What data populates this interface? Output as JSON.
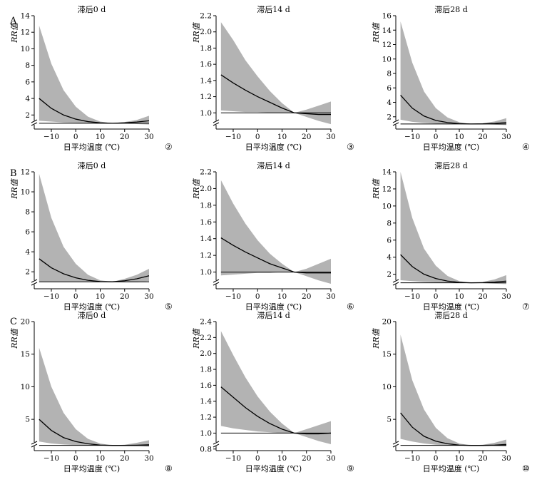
{
  "row_labels": [
    "A",
    "B",
    "C"
  ],
  "chart_data": [
    {
      "type": "line",
      "row": 0,
      "col": 0,
      "number": "②",
      "title": "滞后0 d",
      "xlabel": "日平均温度 (℃)",
      "ylabel": "RR值",
      "xlim": [
        -17,
        30
      ],
      "ylim": [
        0.3,
        14
      ],
      "xticks": [
        -10,
        0,
        10,
        20,
        30
      ],
      "yticks": [
        2,
        4,
        6,
        8,
        10,
        12,
        14
      ],
      "axis_break": true,
      "x": [
        -15,
        -10,
        -5,
        0,
        5,
        10,
        15,
        20,
        25,
        30
      ],
      "series": [
        {
          "role": "estimate",
          "values": [
            4.0,
            2.8,
            2.0,
            1.5,
            1.2,
            1.05,
            1.0,
            1.05,
            1.15,
            1.3
          ]
        },
        {
          "role": "ci_upper",
          "values": [
            12.8,
            8.2,
            5.0,
            3.0,
            1.8,
            1.2,
            1.0,
            1.15,
            1.4,
            1.9
          ]
        },
        {
          "role": "ci_lower",
          "values": [
            1.3,
            1.2,
            1.1,
            1.05,
            1.0,
            0.98,
            1.0,
            0.97,
            0.9,
            0.85
          ]
        },
        {
          "role": "reference",
          "values": [
            1,
            1,
            1,
            1,
            1,
            1,
            1,
            1,
            1,
            1
          ]
        }
      ]
    },
    {
      "type": "line",
      "row": 0,
      "col": 1,
      "number": "③",
      "title": "滞后14 d",
      "xlabel": "日平均温度 (℃)",
      "ylabel": "RR值",
      "xlim": [
        -17,
        30
      ],
      "ylim": [
        0.8,
        2.2
      ],
      "xticks": [
        -10,
        0,
        10,
        20,
        30
      ],
      "yticks": [
        1.0,
        1.2,
        1.4,
        1.6,
        1.8,
        2.0,
        2.2
      ],
      "axis_break": true,
      "x": [
        -15,
        -10,
        -5,
        0,
        5,
        10,
        15,
        20,
        25,
        30
      ],
      "series": [
        {
          "role": "estimate",
          "values": [
            1.47,
            1.37,
            1.28,
            1.2,
            1.13,
            1.06,
            1.0,
            0.99,
            0.98,
            0.98
          ]
        },
        {
          "role": "ci_upper",
          "values": [
            2.12,
            1.9,
            1.65,
            1.45,
            1.27,
            1.12,
            1.0,
            1.04,
            1.09,
            1.14
          ]
        },
        {
          "role": "ci_lower",
          "values": [
            1.03,
            1.02,
            1.01,
            1.01,
            1.0,
            1.0,
            1.0,
            0.95,
            0.9,
            0.86
          ]
        },
        {
          "role": "reference",
          "values": [
            1,
            1,
            1,
            1,
            1,
            1,
            1,
            1,
            1,
            1
          ]
        }
      ]
    },
    {
      "type": "line",
      "row": 0,
      "col": 2,
      "number": "④",
      "title": "滞后28 d",
      "xlabel": "日平均温度 (℃)",
      "ylabel": "RR值",
      "xlim": [
        -17,
        30
      ],
      "ylim": [
        0.3,
        16
      ],
      "xticks": [
        -10,
        0,
        10,
        20,
        30
      ],
      "yticks": [
        2,
        4,
        6,
        8,
        10,
        12,
        14,
        16
      ],
      "axis_break": true,
      "x": [
        -15,
        -10,
        -5,
        0,
        5,
        10,
        15,
        20,
        25,
        30
      ],
      "series": [
        {
          "role": "estimate",
          "values": [
            5.0,
            3.2,
            2.1,
            1.5,
            1.2,
            1.05,
            1.0,
            1.02,
            1.08,
            1.2
          ]
        },
        {
          "role": "ci_upper",
          "values": [
            15.2,
            9.5,
            5.5,
            3.2,
            1.9,
            1.25,
            1.0,
            1.1,
            1.35,
            1.8
          ]
        },
        {
          "role": "ci_lower",
          "values": [
            1.6,
            1.3,
            1.15,
            1.05,
            1.0,
            0.98,
            1.0,
            0.97,
            0.9,
            0.85
          ]
        },
        {
          "role": "reference",
          "values": [
            1,
            1,
            1,
            1,
            1,
            1,
            1,
            1,
            1,
            1
          ]
        }
      ]
    },
    {
      "type": "line",
      "row": 1,
      "col": 0,
      "number": "⑤",
      "title": "滞后0 d",
      "xlabel": "日平均温度 (℃)",
      "ylabel": "RR值",
      "xlim": [
        -17,
        30
      ],
      "ylim": [
        0.3,
        12
      ],
      "xticks": [
        -10,
        0,
        10,
        20,
        30
      ],
      "yticks": [
        2,
        4,
        6,
        8,
        10,
        12
      ],
      "axis_break": true,
      "x": [
        -15,
        -10,
        -5,
        0,
        5,
        10,
        15,
        20,
        25,
        30
      ],
      "series": [
        {
          "role": "estimate",
          "values": [
            3.3,
            2.4,
            1.8,
            1.4,
            1.15,
            1.02,
            1.0,
            1.1,
            1.3,
            1.6
          ]
        },
        {
          "role": "ci_upper",
          "values": [
            11.8,
            7.4,
            4.5,
            2.8,
            1.7,
            1.15,
            1.0,
            1.3,
            1.7,
            2.3
          ]
        },
        {
          "role": "ci_lower",
          "values": [
            1.0,
            1.0,
            1.0,
            1.0,
            0.98,
            0.96,
            1.0,
            0.95,
            0.95,
            1.05
          ]
        },
        {
          "role": "reference",
          "values": [
            1,
            1,
            1,
            1,
            1,
            1,
            1,
            1,
            1,
            1
          ]
        }
      ]
    },
    {
      "type": "line",
      "row": 1,
      "col": 1,
      "number": "⑥",
      "title": "滞后14 d",
      "xlabel": "日平均温度 (℃)",
      "ylabel": "RR值",
      "xlim": [
        -17,
        30
      ],
      "ylim": [
        0.8,
        2.2
      ],
      "xticks": [
        -10,
        0,
        10,
        20,
        30
      ],
      "yticks": [
        1.0,
        1.2,
        1.4,
        1.6,
        1.8,
        2.0,
        2.2
      ],
      "axis_break": true,
      "x": [
        -15,
        -10,
        -5,
        0,
        5,
        10,
        15,
        20,
        25,
        30
      ],
      "series": [
        {
          "role": "estimate",
          "values": [
            1.41,
            1.32,
            1.24,
            1.17,
            1.1,
            1.05,
            1.0,
            0.99,
            0.99,
            0.99
          ]
        },
        {
          "role": "ci_upper",
          "values": [
            2.1,
            1.82,
            1.58,
            1.38,
            1.22,
            1.1,
            1.0,
            1.04,
            1.1,
            1.16
          ]
        },
        {
          "role": "ci_lower",
          "values": [
            0.96,
            0.97,
            0.98,
            0.99,
            0.99,
            1.0,
            1.0,
            0.95,
            0.9,
            0.86
          ]
        },
        {
          "role": "reference",
          "values": [
            1,
            1,
            1,
            1,
            1,
            1,
            1,
            1,
            1,
            1
          ]
        }
      ]
    },
    {
      "type": "line",
      "row": 1,
      "col": 2,
      "number": "⑦",
      "title": "滞后28 d",
      "xlabel": "日平均温度 (℃)",
      "ylabel": "RR值",
      "xlim": [
        -17,
        30
      ],
      "ylim": [
        0.3,
        14
      ],
      "xticks": [
        -10,
        0,
        10,
        20,
        30
      ],
      "yticks": [
        2,
        4,
        6,
        8,
        10,
        12,
        14
      ],
      "axis_break": true,
      "x": [
        -15,
        -10,
        -5,
        0,
        5,
        10,
        15,
        20,
        25,
        30
      ],
      "series": [
        {
          "role": "estimate",
          "values": [
            4.3,
            2.9,
            2.0,
            1.5,
            1.2,
            1.05,
            1.0,
            1.02,
            1.08,
            1.2
          ]
        },
        {
          "role": "ci_upper",
          "values": [
            14.0,
            8.6,
            5.0,
            3.0,
            1.8,
            1.2,
            1.0,
            1.1,
            1.4,
            1.9
          ]
        },
        {
          "role": "ci_lower",
          "values": [
            1.3,
            1.2,
            1.1,
            1.05,
            1.0,
            0.98,
            1.0,
            0.96,
            0.9,
            0.85
          ]
        },
        {
          "role": "reference",
          "values": [
            1,
            1,
            1,
            1,
            1,
            1,
            1,
            1,
            1,
            1
          ]
        }
      ]
    },
    {
      "type": "line",
      "row": 2,
      "col": 0,
      "number": "⑧",
      "title": "滞后0 d",
      "xlabel": "日平均温度 (℃)",
      "ylabel": "RR值",
      "xlim": [
        -17,
        30
      ],
      "ylim": [
        0.2,
        20
      ],
      "xticks": [
        -10,
        0,
        10,
        20,
        30
      ],
      "yticks": [
        5,
        10,
        15,
        20
      ],
      "axis_break": true,
      "x": [
        -15,
        -10,
        -5,
        0,
        5,
        10,
        15,
        20,
        25,
        30
      ],
      "series": [
        {
          "role": "estimate",
          "values": [
            5.0,
            3.3,
            2.2,
            1.6,
            1.25,
            1.05,
            1.0,
            1.0,
            1.03,
            1.1
          ]
        },
        {
          "role": "ci_upper",
          "values": [
            16.0,
            10.0,
            6.0,
            3.5,
            2.0,
            1.3,
            1.0,
            1.1,
            1.4,
            1.8
          ]
        },
        {
          "role": "ci_lower",
          "values": [
            1.6,
            1.3,
            1.15,
            1.05,
            1.0,
            0.97,
            1.0,
            0.92,
            0.85,
            0.8
          ]
        },
        {
          "role": "reference",
          "values": [
            1,
            1,
            1,
            1,
            1,
            1,
            1,
            1,
            1,
            1
          ]
        }
      ]
    },
    {
      "type": "line",
      "row": 2,
      "col": 1,
      "number": "⑨",
      "title": "滞后14 d",
      "xlabel": "日平均温度 (℃)",
      "ylabel": "RR值",
      "xlim": [
        -17,
        30
      ],
      "ylim": [
        0.78,
        2.4
      ],
      "xticks": [
        -10,
        0,
        10,
        20,
        30
      ],
      "yticks": [
        0.8,
        1.0,
        1.2,
        1.4,
        1.6,
        1.8,
        2.0,
        2.2,
        2.4
      ],
      "axis_break": true,
      "x": [
        -15,
        -10,
        -5,
        0,
        5,
        10,
        15,
        20,
        25,
        30
      ],
      "series": [
        {
          "role": "estimate",
          "values": [
            1.58,
            1.45,
            1.32,
            1.21,
            1.12,
            1.05,
            1.0,
            0.99,
            0.99,
            1.0
          ]
        },
        {
          "role": "ci_upper",
          "values": [
            2.28,
            1.98,
            1.7,
            1.46,
            1.27,
            1.12,
            1.0,
            1.05,
            1.1,
            1.15
          ]
        },
        {
          "role": "ci_lower",
          "values": [
            1.09,
            1.06,
            1.04,
            1.02,
            1.01,
            1.0,
            1.0,
            0.95,
            0.9,
            0.86
          ]
        },
        {
          "role": "reference",
          "values": [
            1,
            1,
            1,
            1,
            1,
            1,
            1,
            1,
            1,
            1
          ]
        }
      ]
    },
    {
      "type": "line",
      "row": 2,
      "col": 2,
      "number": "⑩",
      "title": "滞后28 d",
      "xlabel": "日平均温度 (℃)",
      "ylabel": "RR值",
      "xlim": [
        -17,
        30
      ],
      "ylim": [
        0.2,
        20
      ],
      "xticks": [
        -10,
        0,
        10,
        20,
        30
      ],
      "yticks": [
        5,
        10,
        15,
        20
      ],
      "axis_break": true,
      "x": [
        -15,
        -10,
        -5,
        0,
        5,
        10,
        15,
        20,
        25,
        30
      ],
      "series": [
        {
          "role": "estimate",
          "values": [
            6.0,
            3.8,
            2.4,
            1.65,
            1.25,
            1.05,
            1.0,
            1.0,
            1.05,
            1.15
          ]
        },
        {
          "role": "ci_upper",
          "values": [
            18.0,
            11.0,
            6.5,
            3.7,
            2.1,
            1.3,
            1.0,
            1.1,
            1.4,
            1.9
          ]
        },
        {
          "role": "ci_lower",
          "values": [
            2.0,
            1.6,
            1.3,
            1.1,
            1.02,
            0.98,
            1.0,
            0.95,
            0.9,
            0.85
          ]
        },
        {
          "role": "reference",
          "values": [
            1,
            1,
            1,
            1,
            1,
            1,
            1,
            1,
            1,
            1
          ]
        }
      ]
    }
  ],
  "colors": {
    "ci_band": "#b3b3b3",
    "line": "#000000",
    "axis": "#000000",
    "background": "#ffffff"
  }
}
